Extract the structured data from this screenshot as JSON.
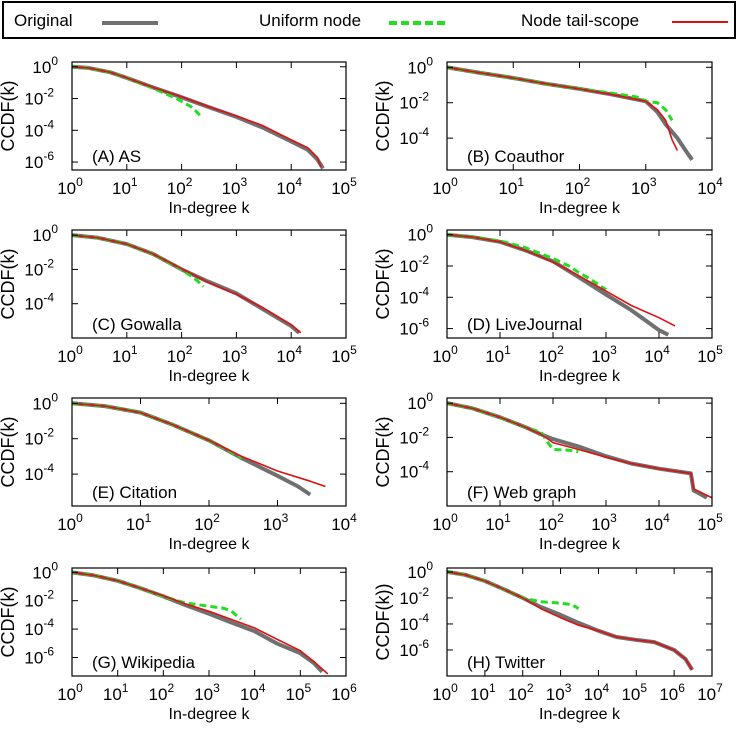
{
  "legend": {
    "original": "Original",
    "uniform": "Uniform node",
    "tailscope": "Node tail-scope"
  },
  "colors": {
    "original": "#707070",
    "uniform": "#22dd22",
    "tailscope": "#dd1111"
  },
  "chart_data": [
    {
      "type": "line",
      "title": "(A) AS",
      "xlabel": "In-degree k",
      "ylabel": "CCDF(k)",
      "x_scale": "log",
      "y_scale": "log",
      "xticks": [
        0,
        1,
        2,
        3,
        4,
        5
      ],
      "yticks": [
        0,
        -2,
        -4,
        -6
      ],
      "xlim_exp": [
        0,
        5
      ],
      "ylim_exp": [
        -6.5,
        0.3
      ],
      "series": [
        {
          "name": "Original",
          "x": [
            1,
            2,
            5,
            10,
            30,
            100,
            300,
            1000,
            3000,
            10000,
            20000,
            30000,
            38000
          ],
          "y": [
            1,
            0.85,
            0.45,
            0.2,
            0.05,
            0.012,
            0.003,
            0.0007,
            0.00015,
            2e-05,
            6e-06,
            1.5e-06,
            4e-07
          ]
        },
        {
          "name": "Uniform node",
          "x": [
            1,
            2,
            5,
            10,
            30,
            80,
            150,
            200,
            230
          ],
          "y": [
            1,
            0.85,
            0.45,
            0.2,
            0.045,
            0.01,
            0.003,
            0.0012,
            0.0006
          ]
        },
        {
          "name": "Node tail-scope",
          "x": [
            1,
            2,
            5,
            10,
            30,
            100,
            300,
            1000,
            3000,
            10000,
            20000,
            30000,
            35000
          ],
          "y": [
            1,
            0.85,
            0.45,
            0.2,
            0.05,
            0.013,
            0.0032,
            0.0008,
            0.0002,
            2.5e-05,
            8e-06,
            2e-06,
            5e-07
          ]
        }
      ]
    },
    {
      "type": "line",
      "title": "(B) Coauthor",
      "xlabel": "In-degree k",
      "ylabel": "CCDF(k)",
      "x_scale": "log",
      "y_scale": "log",
      "xticks": [
        0,
        1,
        2,
        3,
        4
      ],
      "yticks": [
        0,
        -2,
        -4
      ],
      "xlim_exp": [
        0,
        4
      ],
      "ylim_exp": [
        -5.8,
        0.3
      ],
      "series": [
        {
          "name": "Original",
          "x": [
            1,
            3,
            10,
            30,
            100,
            300,
            1000,
            1500,
            2000,
            3000,
            4000,
            5000
          ],
          "y": [
            1,
            0.5,
            0.25,
            0.12,
            0.06,
            0.03,
            0.012,
            0.003,
            0.0006,
            0.0001,
            2e-05,
            6e-06
          ]
        },
        {
          "name": "Uniform node",
          "x": [
            1,
            3,
            10,
            30,
            100,
            300,
            800,
            1000,
            1500,
            2000,
            2500
          ],
          "y": [
            1,
            0.5,
            0.25,
            0.12,
            0.06,
            0.035,
            0.02,
            0.012,
            0.01,
            0.004,
            0.001
          ]
        },
        {
          "name": "Node tail-scope",
          "x": [
            1,
            3,
            10,
            30,
            100,
            300,
            1000,
            1500,
            2000,
            2500,
            3000
          ],
          "y": [
            1,
            0.5,
            0.25,
            0.12,
            0.06,
            0.03,
            0.012,
            0.004,
            0.001,
            8e-05,
            2e-05
          ]
        }
      ]
    },
    {
      "type": "line",
      "title": "(C) Gowalla",
      "xlabel": "In-degree k",
      "ylabel": "CCDF(k)",
      "x_scale": "log",
      "y_scale": "log",
      "xticks": [
        0,
        1,
        2,
        3,
        4,
        5
      ],
      "yticks": [
        0,
        -2,
        -4
      ],
      "xlim_exp": [
        0,
        5
      ],
      "ylim_exp": [
        -6,
        0.3
      ],
      "series": [
        {
          "name": "Original",
          "x": [
            1,
            3,
            10,
            30,
            100,
            300,
            1000,
            3000,
            10000,
            14000
          ],
          "y": [
            1,
            0.7,
            0.3,
            0.08,
            0.01,
            0.002,
            0.0004,
            5e-05,
            5e-06,
            2e-06
          ]
        },
        {
          "name": "Uniform node",
          "x": [
            1,
            3,
            10,
            30,
            100,
            150,
            200,
            250
          ],
          "y": [
            1,
            0.7,
            0.3,
            0.08,
            0.01,
            0.004,
            0.002,
            0.001
          ]
        },
        {
          "name": "Node tail-scope",
          "x": [
            1,
            3,
            10,
            30,
            100,
            300,
            1000,
            3000,
            10000,
            15000
          ],
          "y": [
            1,
            0.7,
            0.3,
            0.08,
            0.011,
            0.0018,
            0.00035,
            6e-05,
            6e-06,
            2e-06
          ]
        }
      ]
    },
    {
      "type": "line",
      "title": "(D) LiveJournal",
      "xlabel": "In-degree k",
      "ylabel": "CCDF(k)",
      "x_scale": "log",
      "y_scale": "log",
      "xticks": [
        0,
        1,
        2,
        3,
        4,
        5
      ],
      "yticks": [
        0,
        -2,
        -4,
        -6
      ],
      "xlim_exp": [
        0,
        5
      ],
      "ylim_exp": [
        -6.6,
        0.3
      ],
      "series": [
        {
          "name": "Original",
          "x": [
            1,
            3,
            10,
            30,
            100,
            300,
            1000,
            3000,
            10000,
            15000
          ],
          "y": [
            1,
            0.7,
            0.35,
            0.1,
            0.02,
            0.002,
            0.00015,
            1.5e-05,
            8e-07,
            4e-07
          ]
        },
        {
          "name": "Uniform node",
          "x": [
            1,
            3,
            10,
            30,
            100,
            200,
            300,
            500,
            1000
          ],
          "y": [
            1,
            0.72,
            0.4,
            0.15,
            0.03,
            0.01,
            0.004,
            0.0015,
            0.0003
          ]
        },
        {
          "name": "Node tail-scope",
          "x": [
            1,
            3,
            10,
            30,
            100,
            300,
            1000,
            3000,
            10000,
            20000
          ],
          "y": [
            1,
            0.7,
            0.35,
            0.1,
            0.018,
            0.0025,
            0.00025,
            3e-05,
            5e-06,
            1.5e-06
          ]
        }
      ]
    },
    {
      "type": "line",
      "title": "(E) Citation",
      "xlabel": "In-degree k",
      "ylabel": "CCDF(k)",
      "x_scale": "log",
      "y_scale": "log",
      "xticks": [
        0,
        1,
        2,
        3,
        4
      ],
      "yticks": [
        0,
        -2,
        -4
      ],
      "xlim_exp": [
        0,
        4
      ],
      "ylim_exp": [
        -5.8,
        0.3
      ],
      "series": [
        {
          "name": "Original",
          "x": [
            1,
            3,
            10,
            30,
            100,
            300,
            1000,
            2000,
            3000
          ],
          "y": [
            1,
            0.7,
            0.3,
            0.06,
            0.008,
            0.0008,
            8e-05,
            2e-05,
            7e-06
          ]
        },
        {
          "name": "Uniform node",
          "x": [
            1,
            3,
            10,
            30,
            100,
            200,
            300
          ],
          "y": [
            1,
            0.7,
            0.3,
            0.06,
            0.008,
            0.002,
            0.0008
          ]
        },
        {
          "name": "Node tail-scope",
          "x": [
            1,
            3,
            10,
            30,
            100,
            300,
            1000,
            3000,
            5000
          ],
          "y": [
            1,
            0.7,
            0.3,
            0.06,
            0.008,
            0.001,
            0.00015,
            4e-05,
            2e-05
          ]
        }
      ]
    },
    {
      "type": "line",
      "title": "(F) Web graph",
      "xlabel": "In-degree k",
      "ylabel": "CCDF(k)",
      "x_scale": "log",
      "y_scale": "log",
      "xticks": [
        0,
        1,
        2,
        3,
        4,
        5
      ],
      "yticks": [
        0,
        -2,
        -4
      ],
      "xlim_exp": [
        0,
        5
      ],
      "ylim_exp": [
        -6,
        0.3
      ],
      "series": [
        {
          "name": "Original",
          "x": [
            1,
            3,
            10,
            30,
            60,
            100,
            300,
            1000,
            3000,
            10000,
            40000,
            45000,
            60000,
            80000
          ],
          "y": [
            1,
            0.5,
            0.15,
            0.04,
            0.015,
            0.008,
            0.003,
            0.0008,
            0.0003,
            0.00015,
            8e-05,
            8e-06,
            5e-06,
            3e-06
          ]
        },
        {
          "name": "Uniform node",
          "x": [
            1,
            3,
            10,
            30,
            60,
            80,
            100,
            200,
            300
          ],
          "y": [
            1,
            0.5,
            0.15,
            0.04,
            0.02,
            0.005,
            0.002,
            0.0018,
            0.0015
          ]
        },
        {
          "name": "Node tail-scope",
          "x": [
            1,
            3,
            10,
            30,
            60,
            100,
            300,
            1000,
            3000,
            10000,
            40000,
            45000,
            100000
          ],
          "y": [
            1,
            0.5,
            0.15,
            0.04,
            0.015,
            0.005,
            0.002,
            0.0007,
            0.0003,
            0.00015,
            8e-05,
            1e-05,
            3e-06
          ]
        }
      ]
    },
    {
      "type": "line",
      "title": "(G) Wikipedia",
      "xlabel": "In-degree k",
      "ylabel": "CCDF(k)",
      "x_scale": "log",
      "y_scale": "log",
      "xticks": [
        0,
        1,
        2,
        3,
        4,
        5,
        6
      ],
      "yticks": [
        0,
        -2,
        -4,
        -6
      ],
      "xlim_exp": [
        0,
        6
      ],
      "ylim_exp": [
        -7.3,
        0.3
      ],
      "series": [
        {
          "name": "Original",
          "x": [
            1,
            3,
            10,
            30,
            100,
            300,
            1000,
            3000,
            10000,
            30000,
            100000,
            200000,
            300000
          ],
          "y": [
            1,
            0.6,
            0.25,
            0.08,
            0.02,
            0.005,
            0.0012,
            0.0003,
            7e-05,
            1e-05,
            2e-06,
            4e-07,
            1e-07
          ]
        },
        {
          "name": "Uniform node",
          "x": [
            1,
            3,
            10,
            30,
            100,
            300,
            1000,
            2000,
            3000,
            5000
          ],
          "y": [
            1,
            0.6,
            0.25,
            0.08,
            0.02,
            0.007,
            0.004,
            0.003,
            0.002,
            0.0005
          ]
        },
        {
          "name": "Node tail-scope",
          "x": [
            1,
            3,
            10,
            30,
            100,
            300,
            1000,
            3000,
            10000,
            30000,
            100000,
            200000,
            400000
          ],
          "y": [
            1,
            0.6,
            0.25,
            0.08,
            0.022,
            0.006,
            0.0018,
            0.0005,
            0.00012,
            2e-05,
            3e-06,
            5e-07,
            7e-08
          ]
        }
      ]
    },
    {
      "type": "line",
      "title": "(H) Twitter",
      "xlabel": "In-degree k",
      "ylabel": "CCDF(k))",
      "x_scale": "log",
      "y_scale": "log",
      "xticks": [
        0,
        1,
        2,
        3,
        4,
        5,
        6,
        7
      ],
      "yticks": [
        0,
        -2,
        -4,
        -6
      ],
      "xlim_exp": [
        0,
        7
      ],
      "ylim_exp": [
        -8,
        0.3
      ],
      "series": [
        {
          "name": "Original",
          "x": [
            1,
            3,
            10,
            30,
            100,
            300,
            1000,
            3000,
            10000,
            30000,
            100000,
            300000,
            1000000,
            2000000,
            3000000
          ],
          "y": [
            1,
            0.6,
            0.2,
            0.05,
            0.01,
            0.002,
            0.0005,
            0.00012,
            3e-05,
            1e-05,
            6e-06,
            4e-06,
            1e-06,
            2e-07,
            3e-08
          ]
        },
        {
          "name": "Uniform node",
          "x": [
            1,
            3,
            10,
            30,
            100,
            300,
            1000,
            2000,
            3000
          ],
          "y": [
            1,
            0.6,
            0.2,
            0.05,
            0.01,
            0.005,
            0.004,
            0.003,
            0.0015
          ]
        },
        {
          "name": "Node tail-scope",
          "x": [
            1,
            3,
            10,
            30,
            100,
            300,
            1000,
            3000,
            10000,
            30000,
            100000,
            300000,
            1000000,
            2000000,
            3000000
          ],
          "y": [
            1,
            0.6,
            0.2,
            0.05,
            0.01,
            0.0015,
            0.0003,
            8e-05,
            3e-05,
            1e-05,
            6e-06,
            4e-06,
            1e-06,
            2e-07,
            3e-08
          ]
        }
      ]
    }
  ]
}
